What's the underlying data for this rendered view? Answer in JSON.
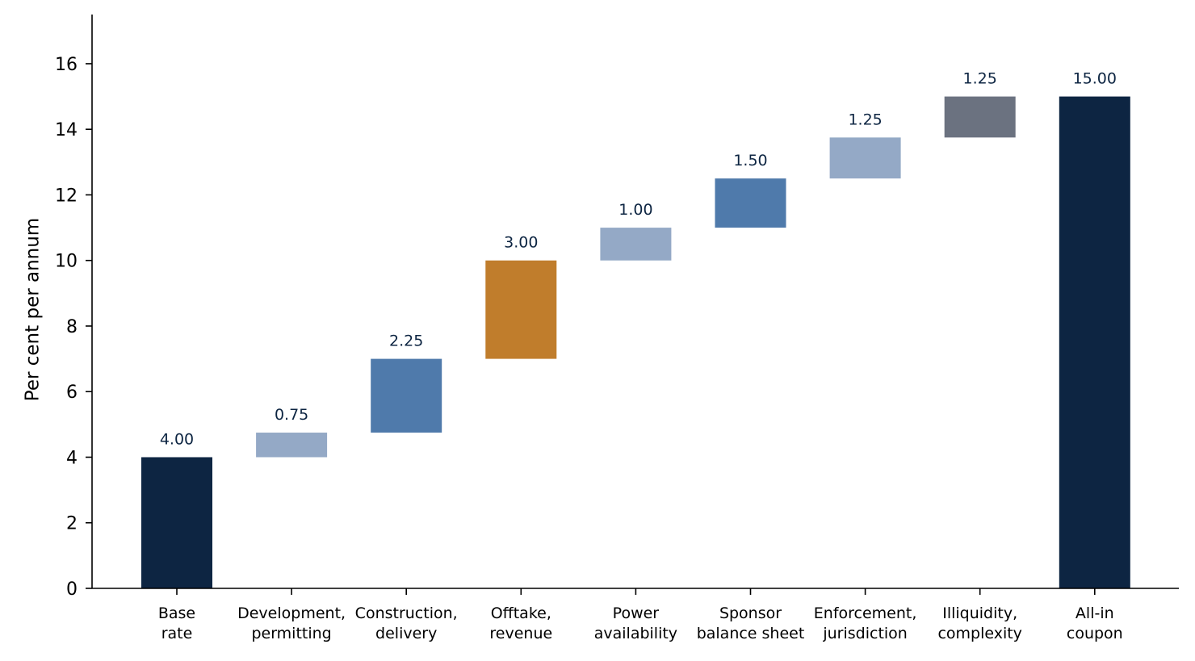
{
  "chart_data": {
    "type": "bar",
    "subtype": "waterfall",
    "title": "",
    "xlabel": "",
    "ylabel": "Per cent per annum",
    "ylim": [
      0,
      17.5
    ],
    "yticks": [
      0,
      2,
      4,
      6,
      8,
      10,
      12,
      14,
      16
    ],
    "grid": false,
    "legend": "none",
    "categories": [
      [
        "Base",
        "rate"
      ],
      [
        "Development,",
        "permitting"
      ],
      [
        "Construction,",
        "delivery"
      ],
      [
        "Offtake,",
        "revenue"
      ],
      [
        "Power",
        "availability"
      ],
      [
        "Sponsor",
        "balance sheet"
      ],
      [
        "Enforcement,",
        "jurisdiction"
      ],
      [
        "Illiquidity,",
        "complexity"
      ],
      [
        "All-in",
        "coupon"
      ]
    ],
    "bars": [
      {
        "base": 0,
        "value": 4.0,
        "label": "4.00",
        "color": "#0d2542"
      },
      {
        "base": 4.0,
        "value": 0.75,
        "label": "0.75",
        "color": "#94a9c6"
      },
      {
        "base": 4.75,
        "value": 2.25,
        "label": "2.25",
        "color": "#4f7aab"
      },
      {
        "base": 7.0,
        "value": 3.0,
        "label": "3.00",
        "color": "#c07d2c"
      },
      {
        "base": 10.0,
        "value": 1.0,
        "label": "1.00",
        "color": "#94a9c6"
      },
      {
        "base": 11.0,
        "value": 1.5,
        "label": "1.50",
        "color": "#4f7aab"
      },
      {
        "base": 12.5,
        "value": 1.25,
        "label": "1.25",
        "color": "#94a9c6"
      },
      {
        "base": 13.75,
        "value": 1.25,
        "label": "1.25",
        "color": "#6b7280"
      },
      {
        "base": 0,
        "value": 15.0,
        "label": "15.00",
        "color": "#0d2542"
      }
    ]
  }
}
